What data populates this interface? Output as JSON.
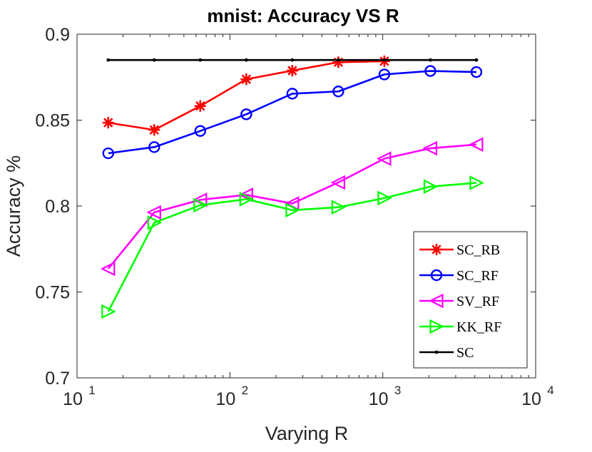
{
  "chart_data": {
    "type": "line",
    "title": "mnist: Accuracy VS R",
    "xlabel": "Varying R",
    "ylabel": "Accuracy %",
    "xscale": "log",
    "xlim": [
      10,
      10000
    ],
    "ylim": [
      0.7,
      0.9
    ],
    "grid": false,
    "legend_position": "bottom-right",
    "x_ticks": [
      {
        "base": "10",
        "exp": "1",
        "value": 10
      },
      {
        "base": "10",
        "exp": "2",
        "value": 100
      },
      {
        "base": "10",
        "exp": "3",
        "value": 1000
      },
      {
        "base": "10",
        "exp": "4",
        "value": 10000
      }
    ],
    "y_ticks": [
      {
        "label": "0.7",
        "value": 0.7
      },
      {
        "label": "0.75",
        "value": 0.75
      },
      {
        "label": "0.8",
        "value": 0.8
      },
      {
        "label": "0.85",
        "value": 0.85
      },
      {
        "label": "0.9",
        "value": 0.9
      }
    ],
    "series": [
      {
        "name": "SC_RB",
        "legend_label": "SC_RB",
        "color": "#ff0000",
        "marker": "asterisk",
        "x": [
          16,
          32,
          64,
          128,
          256,
          512,
          1024
        ],
        "y": [
          0.8485,
          0.8443,
          0.8582,
          0.8738,
          0.8788,
          0.8837,
          0.8843
        ]
      },
      {
        "name": "SC_RF",
        "legend_label": "SC_RF",
        "color": "#0000ff",
        "marker": "circle",
        "x": [
          16,
          32,
          64,
          128,
          256,
          512,
          1024,
          2048,
          4096
        ],
        "y": [
          0.8307,
          0.8343,
          0.8437,
          0.8534,
          0.8654,
          0.8667,
          0.8766,
          0.8786,
          0.878
        ]
      },
      {
        "name": "SV_RF",
        "legend_label": "SV_RF",
        "color": "#ff00ff",
        "marker": "triangle-left",
        "x": [
          16,
          32,
          64,
          128,
          256,
          512,
          1024,
          2048,
          4096
        ],
        "y": [
          0.7635,
          0.7963,
          0.8036,
          0.8065,
          0.8015,
          0.8137,
          0.8276,
          0.8336,
          0.8358
        ]
      },
      {
        "name": "KK_RF",
        "legend_label": "KK_RF",
        "color": "#00ff00",
        "marker": "triangle-right",
        "x": [
          16,
          32,
          64,
          128,
          256,
          512,
          1024,
          2048,
          4096
        ],
        "y": [
          0.7386,
          0.7903,
          0.8005,
          0.804,
          0.7976,
          0.7993,
          0.8046,
          0.8113,
          0.8135
        ]
      },
      {
        "name": "SC",
        "legend_label": "SC",
        "color": "#000000",
        "marker": "dot",
        "x": [
          16,
          32,
          64,
          128,
          256,
          512,
          1024,
          2048,
          4096
        ],
        "y": [
          0.885,
          0.885,
          0.885,
          0.885,
          0.885,
          0.885,
          0.885,
          0.885,
          0.885
        ]
      }
    ]
  }
}
